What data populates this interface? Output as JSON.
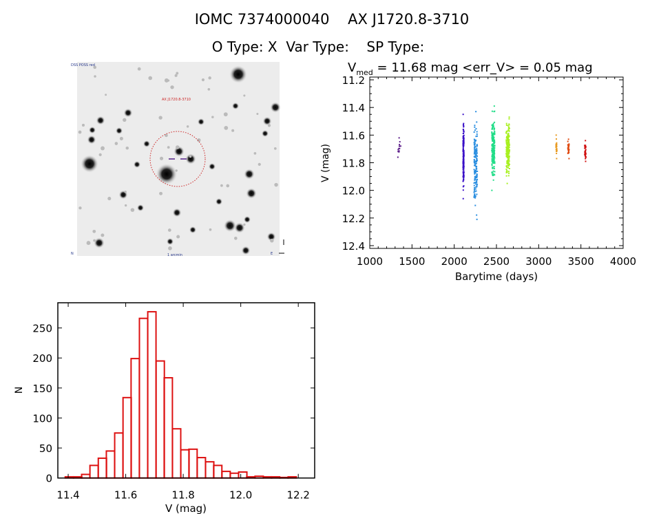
{
  "header": {
    "title": "IOMC 7374000040    AX J1720.8-3710",
    "subtitle": "O Type: X  Var Type:    SP Type:"
  },
  "finder_image": {
    "labels": {
      "top_left": "DSS POSS red",
      "target": "AX J1720.8-3710",
      "bottom_center": "1 arcmin",
      "bottom_left": "N",
      "bottom_right": "E"
    },
    "circle_color": "#cc2222",
    "marker_color": "#552288"
  },
  "chart_data": [
    {
      "type": "scatter",
      "title": "V_med = 11.68 mag <err_V> = 0.05 mag",
      "title_parts": {
        "v": "V",
        "sub": "med",
        "rest": " = 11.68 mag <err_V> = 0.05 mag"
      },
      "xlabel": "Barytime (days)",
      "ylabel": "V (mag)",
      "xlim": [
        1000,
        4000
      ],
      "ylim": [
        12.42,
        11.18
      ],
      "y_inverted": true,
      "xticks": [
        "1000",
        "1500",
        "2000",
        "2500",
        "3000",
        "3500",
        "4000"
      ],
      "yticks": [
        "11.2",
        "11.4",
        "11.6",
        "11.8",
        "12.0",
        "12.2",
        "12.4"
      ],
      "grid": false,
      "color_by": "time (rainbow)",
      "groups": [
        {
          "x": [
            1330,
            1370
          ],
          "v_range": [
            11.62,
            11.76
          ],
          "n": 12,
          "color": "#5a1a88"
        },
        {
          "x": [
            2105,
            2115
          ],
          "v_range": [
            11.45,
            12.06
          ],
          "n": 160,
          "color": "#3a10c8"
        },
        {
          "x": [
            2235,
            2275
          ],
          "v_range": [
            11.43,
            12.21
          ],
          "n": 160,
          "color": "#2a8ee0"
        },
        {
          "x": [
            2445,
            2480
          ],
          "v_range": [
            11.39,
            12.0
          ],
          "n": 200,
          "color": "#22dd88"
        },
        {
          "x": [
            2615,
            2655
          ],
          "v_range": [
            11.47,
            11.95
          ],
          "n": 200,
          "color": "#a8f020"
        },
        {
          "x": [
            3205,
            3215
          ],
          "v_range": [
            11.6,
            11.77
          ],
          "n": 30,
          "color": "#e89a20"
        },
        {
          "x": [
            3345,
            3360
          ],
          "v_range": [
            11.63,
            11.77
          ],
          "n": 30,
          "color": "#e04a10"
        },
        {
          "x": [
            3545,
            3560
          ],
          "v_range": [
            11.64,
            11.79
          ],
          "n": 30,
          "color": "#d01010"
        }
      ]
    },
    {
      "type": "bar",
      "subtype": "histogram",
      "xlabel": "V (mag)",
      "ylabel": "N",
      "xlim": [
        11.364,
        12.257
      ],
      "ylim": [
        0,
        292
      ],
      "xticks": [
        "11.4",
        "11.6",
        "11.8",
        "12.0",
        "12.2"
      ],
      "yticks": [
        "0",
        "50",
        "100",
        "150",
        "200",
        "250"
      ],
      "grid": false,
      "color": "#dd1111",
      "bin_width": 0.0287,
      "bin_centers": [
        11.404,
        11.433,
        11.461,
        11.49,
        11.519,
        11.547,
        11.576,
        11.605,
        11.633,
        11.662,
        11.691,
        11.72,
        11.748,
        11.777,
        11.806,
        11.834,
        11.863,
        11.892,
        11.92,
        11.949,
        11.978,
        12.007,
        12.035,
        12.064,
        12.093,
        12.121,
        12.15,
        12.179
      ],
      "counts": [
        2,
        2,
        6,
        21,
        33,
        45,
        75,
        134,
        199,
        266,
        277,
        195,
        167,
        82,
        47,
        48,
        34,
        27,
        21,
        11,
        8,
        10,
        2,
        3,
        2,
        2,
        1,
        2
      ]
    }
  ]
}
